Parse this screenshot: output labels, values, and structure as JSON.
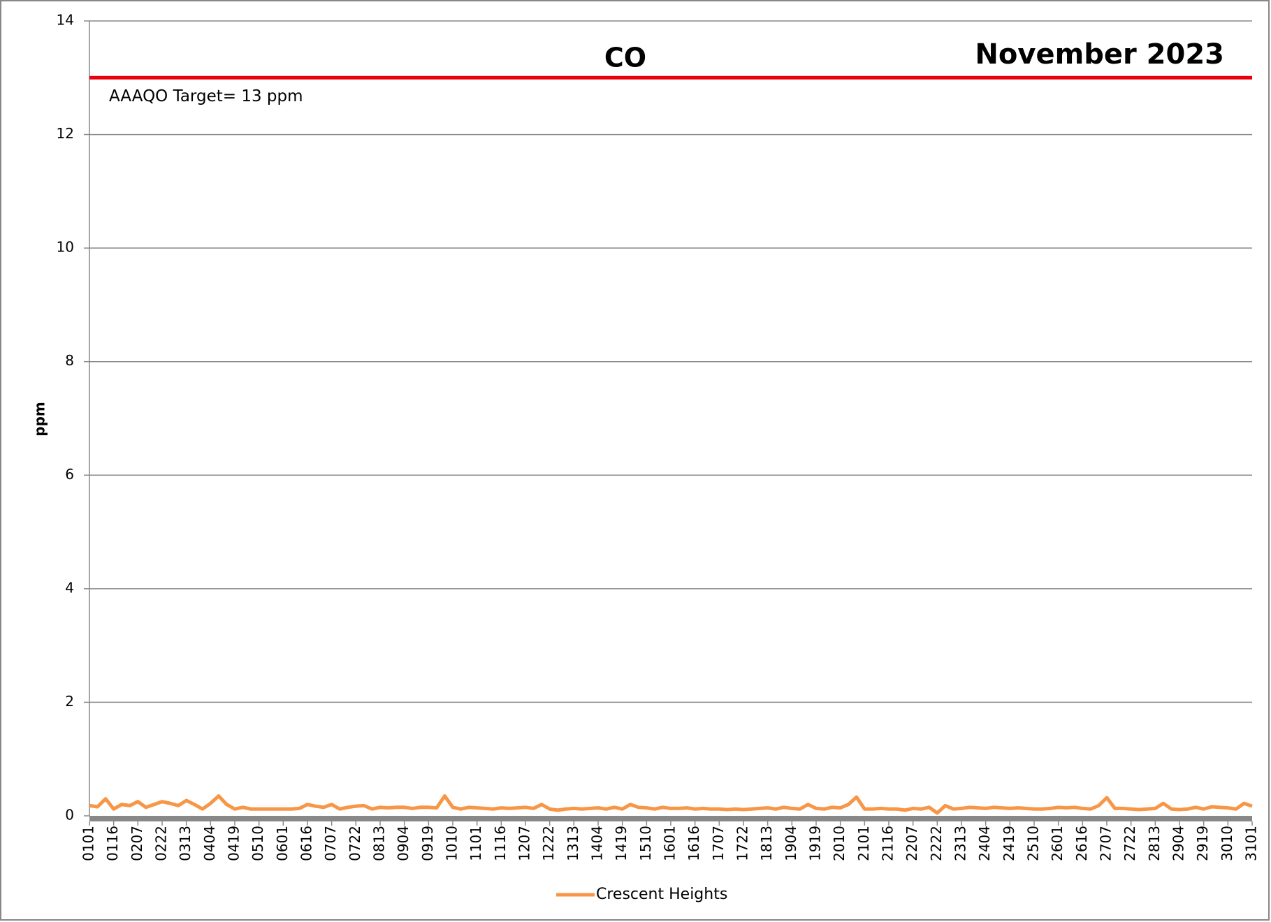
{
  "chart_data": {
    "type": "line",
    "title": "CO",
    "subtitle": "November 2023",
    "y_label": "ppm",
    "ylim": [
      0,
      14
    ],
    "yticks": [
      0,
      2,
      4,
      6,
      8,
      10,
      12,
      14
    ],
    "grid": true,
    "legend": "bottom",
    "reference": {
      "value": 13,
      "label": "AAAQO Target= 13 ppm",
      "color": "#e8000b"
    },
    "categories": [
      "0101",
      null,
      null,
      "0116",
      null,
      null,
      "0207",
      null,
      null,
      "0222",
      null,
      null,
      "0313",
      null,
      null,
      "0404",
      null,
      null,
      "0419",
      null,
      null,
      "0510",
      null,
      null,
      "0601",
      null,
      null,
      "0616",
      null,
      null,
      "0707",
      null,
      null,
      "0722",
      null,
      null,
      "0813",
      null,
      null,
      "0904",
      null,
      null,
      "0919",
      null,
      null,
      "1010",
      null,
      null,
      "1101",
      null,
      null,
      "1116",
      null,
      null,
      "1207",
      null,
      null,
      "1222",
      null,
      null,
      "1313",
      null,
      null,
      "1404",
      null,
      null,
      "1419",
      null,
      null,
      "1510",
      null,
      null,
      "1601",
      null,
      null,
      "1616",
      null,
      null,
      "1707",
      null,
      null,
      "1722",
      null,
      null,
      "1813",
      null,
      null,
      "1904",
      null,
      null,
      "1919",
      null,
      null,
      "2010",
      null,
      null,
      "2101",
      null,
      null,
      "2116",
      null,
      null,
      "2207",
      null,
      null,
      "2222",
      null,
      null,
      "2313",
      null,
      null,
      "2404",
      null,
      null,
      "2419",
      null,
      null,
      "2510",
      null,
      null,
      "2601",
      null,
      null,
      "2616",
      null,
      null,
      "2707",
      null,
      null,
      "2722",
      null,
      null,
      "2813",
      null,
      null,
      "2904",
      null,
      null,
      "2919",
      null,
      null,
      "3010",
      null,
      null,
      "3101"
    ],
    "series": [
      {
        "name": "Crescent Heights",
        "color": "#f79646",
        "values": [
          0.18,
          0.16,
          0.3,
          0.12,
          0.2,
          0.18,
          0.25,
          0.15,
          0.2,
          0.25,
          0.22,
          0.18,
          0.27,
          0.2,
          0.12,
          0.22,
          0.35,
          0.2,
          0.12,
          0.15,
          0.12,
          0.12,
          0.12,
          0.12,
          0.12,
          0.12,
          0.13,
          0.2,
          0.17,
          0.15,
          0.2,
          0.12,
          0.15,
          0.17,
          0.18,
          0.12,
          0.15,
          0.14,
          0.15,
          0.15,
          0.13,
          0.15,
          0.15,
          0.14,
          0.35,
          0.15,
          0.12,
          0.15,
          0.14,
          0.13,
          0.12,
          0.14,
          0.13,
          0.14,
          0.15,
          0.13,
          0.2,
          0.12,
          0.1,
          0.12,
          0.13,
          0.12,
          0.13,
          0.14,
          0.12,
          0.15,
          0.12,
          0.2,
          0.15,
          0.14,
          0.12,
          0.15,
          0.13,
          0.13,
          0.14,
          0.12,
          0.13,
          0.12,
          0.12,
          0.11,
          0.12,
          0.11,
          0.12,
          0.13,
          0.14,
          0.12,
          0.15,
          0.13,
          0.12,
          0.2,
          0.13,
          0.12,
          0.15,
          0.14,
          0.2,
          0.33,
          0.12,
          0.12,
          0.13,
          0.12,
          0.12,
          0.1,
          0.13,
          0.12,
          0.15,
          0.05,
          0.18,
          0.12,
          0.13,
          0.15,
          0.14,
          0.13,
          0.15,
          0.14,
          0.13,
          0.14,
          0.13,
          0.12,
          0.12,
          0.13,
          0.15,
          0.14,
          0.15,
          0.13,
          0.12,
          0.18,
          0.32,
          0.13,
          0.13,
          0.12,
          0.11,
          0.12,
          0.13,
          0.22,
          0.12,
          0.11,
          0.12,
          0.15,
          0.12,
          0.16,
          0.15,
          0.14,
          0.12,
          0.22,
          0.17
        ]
      }
    ]
  }
}
